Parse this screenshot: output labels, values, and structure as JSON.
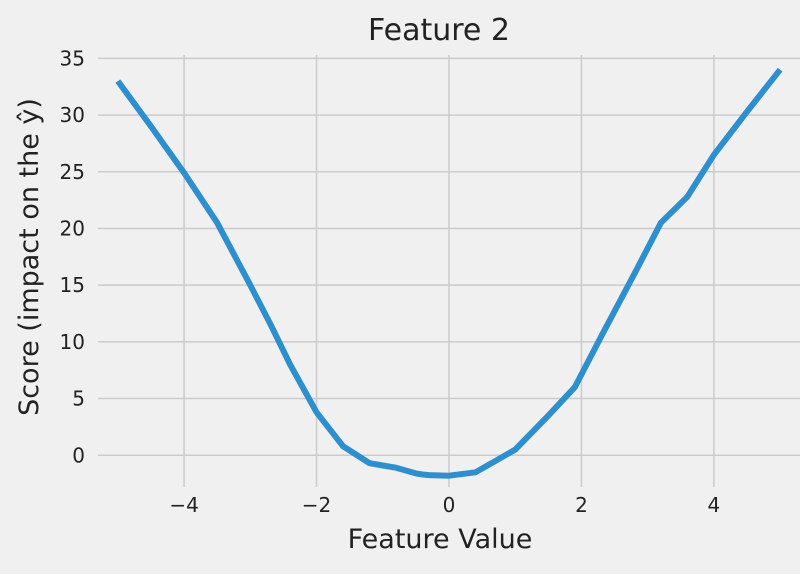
{
  "chart_data": {
    "type": "line",
    "title": "Feature 2",
    "xlabel": "Feature Value",
    "ylabel": "Score (impact on the ŷ)",
    "xlim": [
      -5.3,
      5.3
    ],
    "ylim": [
      -2.8,
      35.3
    ],
    "grid": true,
    "legend": "none",
    "x_ticks": [
      -4,
      -2,
      0,
      2,
      4
    ],
    "x_tick_labels": [
      "−4",
      "−2",
      "0",
      "2",
      "4"
    ],
    "y_ticks": [
      0,
      5,
      10,
      15,
      20,
      25,
      30,
      35
    ],
    "y_tick_labels": [
      "0",
      "5",
      "10",
      "15",
      "20",
      "25",
      "30",
      "35"
    ],
    "series": [
      {
        "color": "#2e8fce",
        "x": [
          -5.0,
          -4.5,
          -4.0,
          -3.5,
          -3.0,
          -2.7,
          -2.4,
          -2.0,
          -1.6,
          -1.2,
          -0.8,
          -0.5,
          -0.4,
          -0.3,
          0.0,
          0.4,
          1.0,
          1.5,
          1.9,
          2.3,
          2.8,
          3.2,
          3.6,
          4.0,
          4.5,
          5.0
        ],
        "y": [
          33.0,
          29.0,
          24.9,
          20.5,
          15.0,
          11.6,
          8.0,
          3.8,
          0.8,
          -0.7,
          -1.1,
          -1.6,
          -1.7,
          -1.75,
          -1.8,
          -1.5,
          0.5,
          3.5,
          6.0,
          10.5,
          16.0,
          20.5,
          22.8,
          26.5,
          30.3,
          34.0
        ]
      }
    ]
  }
}
